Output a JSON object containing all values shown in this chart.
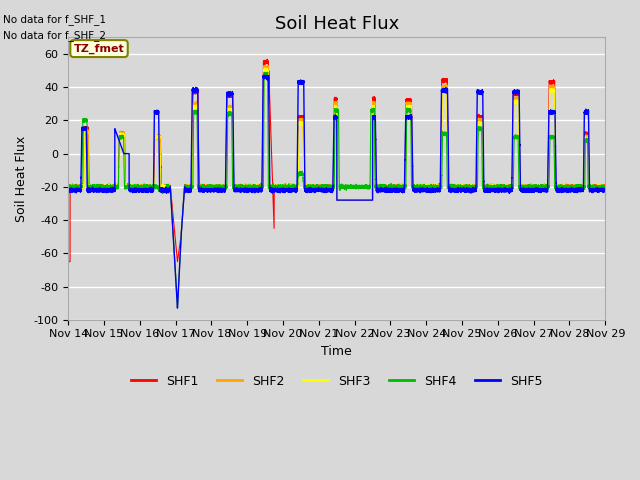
{
  "title": "Soil Heat Flux",
  "ylabel": "Soil Heat Flux",
  "xlabel": "Time",
  "ylim": [
    -100,
    70
  ],
  "xlim": [
    0,
    15
  ],
  "xtick_labels": [
    "Nov 14",
    "Nov 15",
    "Nov 16",
    "Nov 17",
    "Nov 18",
    "Nov 19",
    "Nov 20",
    "Nov 21",
    "Nov 22",
    "Nov 23",
    "Nov 24",
    "Nov 25",
    "Nov 26",
    "Nov 27",
    "Nov 28",
    "Nov 29"
  ],
  "ytick_values": [
    -100,
    -80,
    -60,
    -40,
    -20,
    0,
    20,
    40,
    60
  ],
  "colors": {
    "SHF1": "#ff0000",
    "SHF2": "#ffa500",
    "SHF3": "#ffff00",
    "SHF4": "#00bb00",
    "SHF5": "#0000ff"
  },
  "legend_labels": [
    "SHF1",
    "SHF2",
    "SHF3",
    "SHF4",
    "SHF5"
  ],
  "no_data_text": [
    "No data for f_SHF_1",
    "No data for f_SHF_2"
  ],
  "tz_label": "TZ_fmet",
  "bg_color": "#d8d8d8",
  "plot_bg_color": "#d8d8d8",
  "grid_color": "#ffffff",
  "title_fontsize": 13,
  "axis_label_fontsize": 9,
  "tick_fontsize": 8
}
